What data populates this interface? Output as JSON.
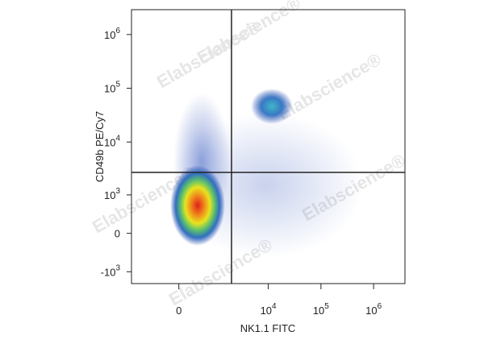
{
  "chart_data": {
    "type": "scatter",
    "x_label": "NK1.1 FITC",
    "y_label": "CD49b PE/Cy7",
    "xscale": "biexponential",
    "yscale": "biexponential",
    "xlim": [
      -1560,
      3940000
    ],
    "ylim": [
      -1700,
      2900000
    ],
    "xticks": [
      0,
      {
        "value": 10000,
        "label": "10",
        "exponent": "4"
      },
      {
        "value": 100000,
        "label": "10",
        "exponent": "5"
      },
      {
        "value": 1000000,
        "label": "10",
        "exponent": "6"
      }
    ],
    "yticks": [
      {
        "value": 1000000,
        "label": "10",
        "exponent": "6"
      },
      {
        "value": 100000,
        "label": "10",
        "exponent": "5"
      },
      {
        "value": 10000,
        "label": "10",
        "exponent": "4"
      },
      {
        "value": 1000,
        "label": "10",
        "exponent": "3"
      },
      0,
      {
        "value": -1000,
        "label": "-10",
        "exponent": "3"
      }
    ],
    "watermark": "Elabscience®"
  }
}
